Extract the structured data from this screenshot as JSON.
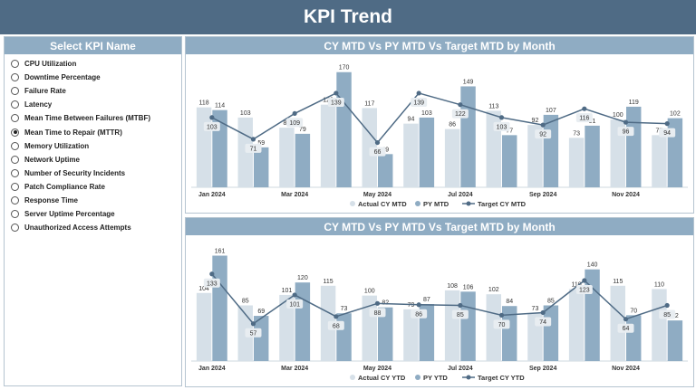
{
  "header": {
    "title": "KPI Trend"
  },
  "sidebar": {
    "title": "Select KPI Name",
    "items": [
      {
        "label": "CPU Utilization",
        "selected": false
      },
      {
        "label": "Downtime Percentage",
        "selected": false
      },
      {
        "label": "Failure Rate",
        "selected": false
      },
      {
        "label": "Latency",
        "selected": false
      },
      {
        "label": "Mean Time Between Failures (MTBF)",
        "selected": false
      },
      {
        "label": "Mean Time to Repair (MTTR)",
        "selected": true
      },
      {
        "label": "Memory Utilization",
        "selected": false
      },
      {
        "label": "Network Uptime",
        "selected": false
      },
      {
        "label": "Number of Security Incidents",
        "selected": false
      },
      {
        "label": "Patch Compliance Rate",
        "selected": false
      },
      {
        "label": "Response Time",
        "selected": false
      },
      {
        "label": "Server Uptime Percentage",
        "selected": false
      },
      {
        "label": "Unauthorized Access Attempts",
        "selected": false
      }
    ]
  },
  "colors": {
    "header": "#4f6b85",
    "panel_head": "#8facc3",
    "actual": "#d6e0e8",
    "prior": "#8facc3",
    "target": "#4f6b85"
  },
  "chart_data": [
    {
      "type": "bar",
      "title": "CY MTD Vs PY MTD Vs Target MTD by Month",
      "categories": [
        "Jan 2024",
        "Feb 2024",
        "Mar 2024",
        "Apr 2024",
        "May 2024",
        "Jun 2024",
        "Jul 2024",
        "Aug 2024",
        "Sep 2024",
        "Oct 2024",
        "Nov 2024",
        "Dec 2024"
      ],
      "tick_labels": [
        "Jan 2024",
        "",
        "Mar 2024",
        "",
        "May 2024",
        "",
        "Jul 2024",
        "",
        "Sep 2024",
        "",
        "Nov 2024",
        ""
      ],
      "series": [
        {
          "name": "Actual CY MTD",
          "kind": "bar",
          "color": "#d6e0e8",
          "values": [
            118,
            103,
            88,
            122,
            117,
            94,
            86,
            113,
            92,
            73,
            100,
            77
          ]
        },
        {
          "name": "PY MTD",
          "kind": "bar",
          "color": "#8facc3",
          "values": [
            114,
            59,
            79,
            170,
            49,
            103,
            149,
            77,
            107,
            91,
            119,
            102
          ]
        },
        {
          "name": "Target CY MTD",
          "kind": "line",
          "color": "#4f6b85",
          "values": [
            103,
            71,
            109,
            139,
            66,
            139,
            122,
            103,
            92,
            116,
            96,
            94
          ]
        }
      ],
      "ylim": [
        0,
        175
      ]
    },
    {
      "type": "bar",
      "title": "CY MTD Vs PY MTD Vs Target MTD by Month",
      "categories": [
        "Jan 2024",
        "Feb 2024",
        "Mar 2024",
        "Apr 2024",
        "May 2024",
        "Jun 2024",
        "Jul 2024",
        "Aug 2024",
        "Sep 2024",
        "Oct 2024",
        "Nov 2024",
        "Dec 2024"
      ],
      "tick_labels": [
        "Jan 2024",
        "",
        "Mar 2024",
        "",
        "May 2024",
        "",
        "Jul 2024",
        "",
        "Sep 2024",
        "",
        "Nov 2024",
        ""
      ],
      "series": [
        {
          "name": "Actual CY YTD",
          "kind": "bar",
          "color": "#d6e0e8",
          "values": [
            104,
            85,
            101,
            115,
            100,
            79,
            108,
            102,
            73,
            110,
            115,
            110
          ]
        },
        {
          "name": "PY YTD",
          "kind": "bar",
          "color": "#8facc3",
          "values": [
            161,
            69,
            120,
            73,
            82,
            87,
            106,
            84,
            85,
            140,
            70,
            62
          ]
        },
        {
          "name": "Target CY YTD",
          "kind": "line",
          "color": "#4f6b85",
          "values": [
            133,
            57,
            101,
            68,
            88,
            86,
            85,
            70,
            74,
            123,
            64,
            85
          ]
        }
      ],
      "ylim": [
        0,
        170
      ]
    }
  ]
}
